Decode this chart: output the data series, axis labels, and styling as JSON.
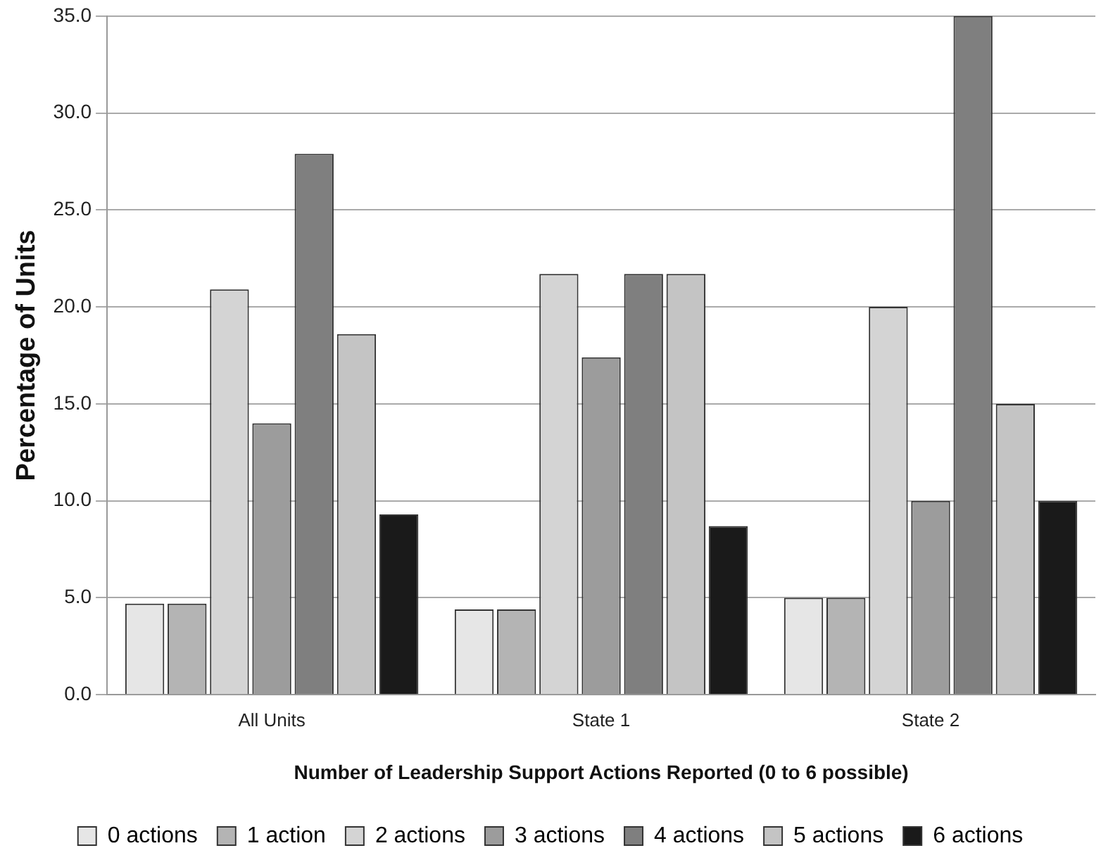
{
  "chart_data": {
    "type": "bar",
    "xlabel": "Number of Leadership Support Actions Reported (0 to 6 possible)",
    "ylabel": "Percentage of Units",
    "categories": [
      "All Units",
      "State 1",
      "State 2"
    ],
    "series": [
      {
        "name": "0 actions",
        "color": "#e6e6e6",
        "values": [
          4.7,
          4.4,
          5.0
        ]
      },
      {
        "name": "1 action",
        "color": "#b4b4b4",
        "values": [
          4.7,
          4.4,
          5.0
        ]
      },
      {
        "name": "2 actions",
        "color": "#d4d4d4",
        "values": [
          20.9,
          21.7,
          20.0
        ]
      },
      {
        "name": "3 actions",
        "color": "#9c9c9c",
        "values": [
          14.0,
          17.4,
          10.0
        ]
      },
      {
        "name": "4 actions",
        "color": "#7f7f7f",
        "values": [
          27.9,
          21.7,
          35.0
        ]
      },
      {
        "name": "5 actions",
        "color": "#c4c4c4",
        "values": [
          18.6,
          21.7,
          15.0
        ]
      },
      {
        "name": "6 actions",
        "color": "#1a1a1a",
        "values": [
          9.3,
          8.7,
          10.0
        ]
      }
    ],
    "ylim": [
      0,
      35
    ],
    "yticks": [
      {
        "value": 0,
        "label": "0.0"
      },
      {
        "value": 5,
        "label": "5.0"
      },
      {
        "value": 10,
        "label": "10.0"
      },
      {
        "value": 15,
        "label": "15.0"
      },
      {
        "value": 20,
        "label": "20.0"
      },
      {
        "value": 25,
        "label": "25.0"
      },
      {
        "value": 30,
        "label": "30.0"
      },
      {
        "value": 35,
        "label": "35.0"
      }
    ],
    "grid": "y",
    "legend": "bottom"
  }
}
